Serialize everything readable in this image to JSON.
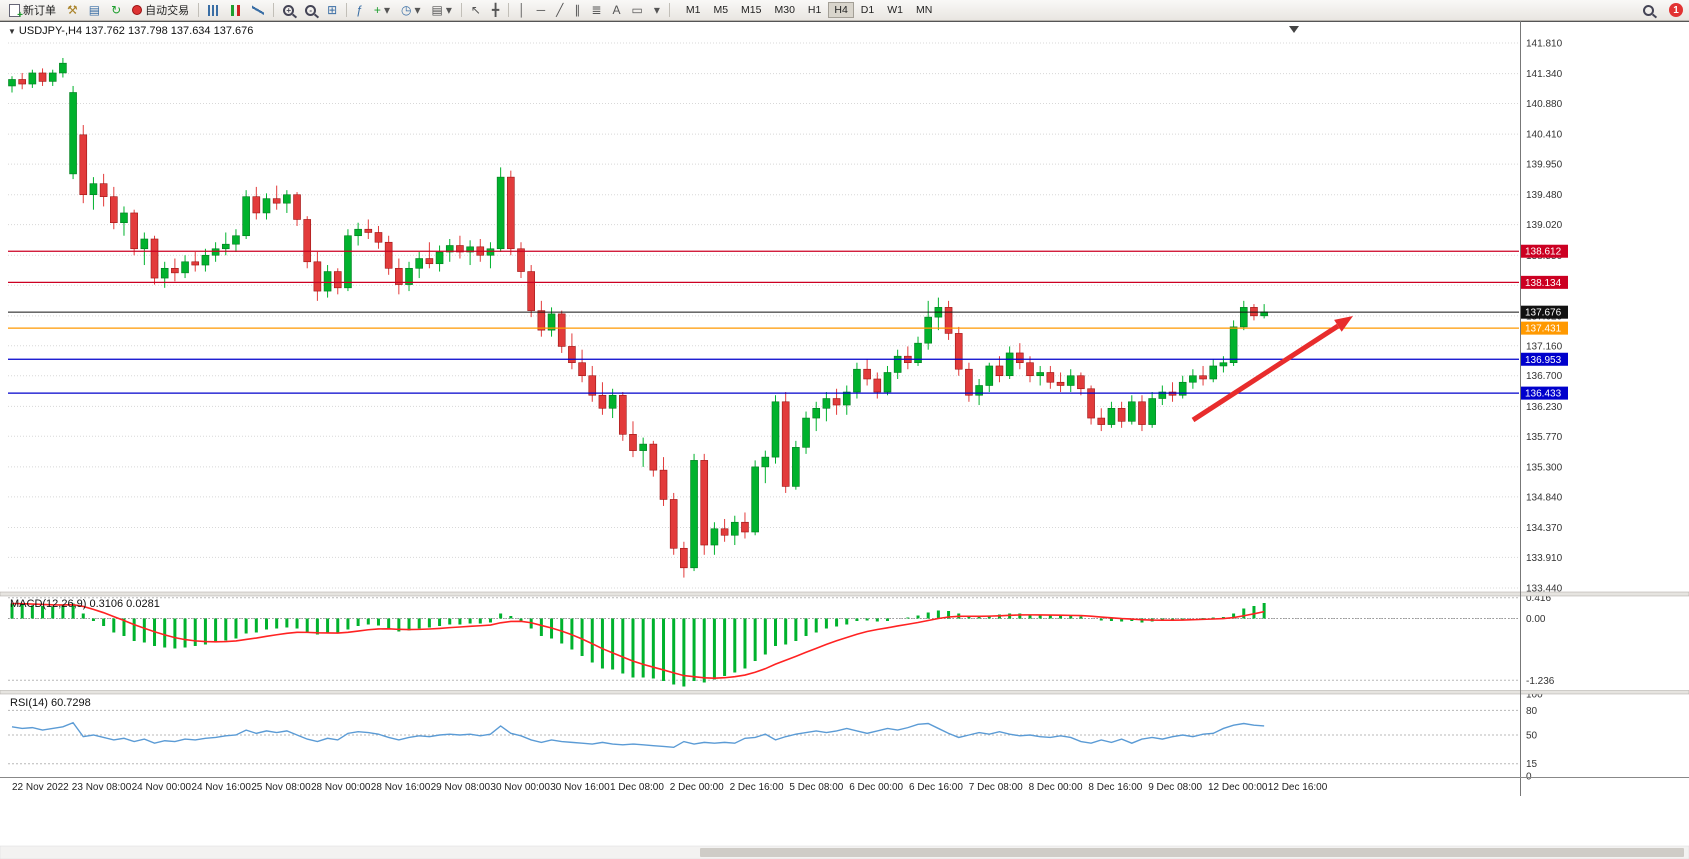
{
  "toolbar": {
    "new_order_label": "新订单",
    "auto_trading_label": "自动交易",
    "timeframes": [
      "M1",
      "M5",
      "M15",
      "M30",
      "H1",
      "H4",
      "D1",
      "W1",
      "MN"
    ],
    "active_timeframe": "H4",
    "notification_badge": "1",
    "icons": {
      "dropdown": "▾",
      "hammer": "⚒",
      "templates": "▤",
      "refresh": "↻",
      "tile": "⊞",
      "indicators": "ƒ",
      "add": "+",
      "clock": "◷",
      "cursor": "↖",
      "crosshair": "╋",
      "vline": "│",
      "hline": "─",
      "trendline": "╱",
      "channel": "∥",
      "fibonacci": "≣",
      "text_tool": "A",
      "label_tool": "▭"
    }
  },
  "chart": {
    "type": "candlestick",
    "symbol_info": "USDJPY-,H4 137.762 137.798 137.634 137.676",
    "collapse_icon": "▼",
    "price_axis": {
      "max": 141.81,
      "min": 133.44,
      "labels": [
        "141.810",
        "141.340",
        "140.880",
        "140.410",
        "139.950",
        "139.480",
        "139.020",
        "138.550",
        "138.090",
        "137.620",
        "137.160",
        "136.700",
        "136.230",
        "135.770",
        "135.300",
        "134.840",
        "134.370",
        "133.910",
        "133.440"
      ]
    },
    "time_labels": [
      "22 Nov 2022",
      "23 Nov 08:00",
      "24 Nov 00:00",
      "24 Nov 16:00",
      "25 Nov 08:00",
      "28 Nov 00:00",
      "28 Nov 16:00",
      "29 Nov 08:00",
      "30 Nov 00:00",
      "30 Nov 16:00",
      "1 Dec 08:00",
      "2 Dec 00:00",
      "2 Dec 16:00",
      "5 Dec 08:00",
      "6 Dec 00:00",
      "6 Dec 16:00",
      "7 Dec 08:00",
      "8 Dec 00:00",
      "8 Dec 16:00",
      "9 Dec 08:00",
      "12 Dec 00:00",
      "12 Dec 16:00"
    ],
    "hlines": [
      {
        "price": 138.612,
        "label": "138.612",
        "color": "#cc0022"
      },
      {
        "price": 138.134,
        "label": "138.134",
        "color": "#cc0022"
      },
      {
        "price": 137.431,
        "label": "137.431",
        "color": "#ff9900"
      },
      {
        "price": 136.953,
        "label": "136.953",
        "color": "#0000cc"
      },
      {
        "price": 136.433,
        "label": "136.433",
        "color": "#0000cc"
      }
    ],
    "bid_line": {
      "price": 137.676,
      "label": "137.676",
      "color": "#111111"
    },
    "colors": {
      "up": "#00b22d",
      "down": "#e23b3b",
      "background": "#ffffff",
      "grid": "#d8d8d8"
    },
    "candles": [
      [
        141.15,
        141.3,
        141.05,
        141.25
      ],
      [
        141.25,
        141.35,
        141.1,
        141.18
      ],
      [
        141.18,
        141.4,
        141.12,
        141.35
      ],
      [
        141.35,
        141.42,
        141.15,
        141.22
      ],
      [
        141.22,
        141.4,
        141.15,
        141.35
      ],
      [
        141.35,
        141.58,
        141.28,
        141.5
      ],
      [
        139.8,
        141.15,
        139.72,
        141.05
      ],
      [
        140.4,
        140.55,
        139.35,
        139.48
      ],
      [
        139.48,
        139.75,
        139.25,
        139.65
      ],
      [
        139.65,
        139.8,
        139.3,
        139.45
      ],
      [
        139.45,
        139.6,
        138.95,
        139.05
      ],
      [
        139.05,
        139.3,
        138.85,
        139.2
      ],
      [
        139.2,
        139.25,
        138.55,
        138.65
      ],
      [
        138.65,
        138.9,
        138.4,
        138.8
      ],
      [
        138.8,
        138.85,
        138.1,
        138.2
      ],
      [
        138.2,
        138.45,
        138.05,
        138.35
      ],
      [
        138.35,
        138.5,
        138.15,
        138.28
      ],
      [
        138.28,
        138.55,
        138.2,
        138.45
      ],
      [
        138.45,
        138.6,
        138.3,
        138.4
      ],
      [
        138.4,
        138.65,
        138.3,
        138.55
      ],
      [
        138.55,
        138.75,
        138.45,
        138.65
      ],
      [
        138.65,
        138.9,
        138.55,
        138.72
      ],
      [
        138.72,
        138.95,
        138.6,
        138.85
      ],
      [
        138.85,
        139.55,
        138.8,
        139.45
      ],
      [
        139.45,
        139.6,
        139.1,
        139.2
      ],
      [
        139.2,
        139.5,
        139.1,
        139.42
      ],
      [
        139.42,
        139.62,
        139.25,
        139.35
      ],
      [
        139.35,
        139.55,
        139.2,
        139.48
      ],
      [
        139.48,
        139.52,
        139.0,
        139.1
      ],
      [
        139.1,
        139.15,
        138.35,
        138.45
      ],
      [
        138.45,
        138.6,
        137.85,
        138.0
      ],
      [
        138.0,
        138.4,
        137.9,
        138.3
      ],
      [
        138.3,
        138.35,
        137.95,
        138.05
      ],
      [
        138.05,
        138.95,
        138.0,
        138.85
      ],
      [
        138.85,
        139.05,
        138.7,
        138.95
      ],
      [
        138.95,
        139.1,
        138.8,
        138.9
      ],
      [
        138.9,
        139.0,
        138.65,
        138.75
      ],
      [
        138.75,
        138.85,
        138.25,
        138.35
      ],
      [
        138.35,
        138.5,
        137.95,
        138.1
      ],
      [
        138.1,
        138.45,
        138.0,
        138.35
      ],
      [
        138.35,
        138.6,
        138.2,
        138.5
      ],
      [
        138.5,
        138.75,
        138.35,
        138.42
      ],
      [
        138.42,
        138.7,
        138.3,
        138.6
      ],
      [
        138.6,
        138.8,
        138.45,
        138.7
      ],
      [
        138.7,
        138.85,
        138.5,
        138.6
      ],
      [
        138.6,
        138.78,
        138.4,
        138.68
      ],
      [
        138.68,
        138.8,
        138.45,
        138.55
      ],
      [
        138.55,
        138.75,
        138.35,
        138.65
      ],
      [
        138.65,
        139.9,
        138.6,
        139.75
      ],
      [
        139.75,
        139.85,
        138.55,
        138.65
      ],
      [
        138.65,
        138.75,
        138.2,
        138.3
      ],
      [
        138.3,
        138.4,
        137.6,
        137.7
      ],
      [
        137.7,
        137.85,
        137.3,
        137.4
      ],
      [
        137.4,
        137.75,
        137.3,
        137.65
      ],
      [
        137.65,
        137.7,
        137.05,
        137.15
      ],
      [
        137.15,
        137.35,
        136.8,
        136.9
      ],
      [
        136.9,
        137.1,
        136.6,
        136.7
      ],
      [
        136.7,
        136.85,
        136.3,
        136.4
      ],
      [
        136.4,
        136.6,
        136.1,
        136.2
      ],
      [
        136.2,
        136.5,
        136.05,
        136.4
      ],
      [
        136.4,
        136.45,
        135.7,
        135.8
      ],
      [
        135.8,
        136.0,
        135.45,
        135.55
      ],
      [
        135.55,
        135.75,
        135.3,
        135.65
      ],
      [
        135.65,
        135.7,
        135.15,
        135.25
      ],
      [
        135.25,
        135.45,
        134.7,
        134.8
      ],
      [
        134.8,
        134.9,
        133.95,
        134.05
      ],
      [
        134.05,
        134.15,
        133.6,
        133.75
      ],
      [
        133.75,
        135.5,
        133.7,
        135.4
      ],
      [
        135.4,
        135.5,
        133.95,
        134.1
      ],
      [
        134.1,
        134.45,
        133.95,
        134.35
      ],
      [
        134.35,
        134.5,
        134.15,
        134.25
      ],
      [
        134.25,
        134.55,
        134.1,
        134.45
      ],
      [
        134.45,
        134.6,
        134.2,
        134.3
      ],
      [
        134.3,
        135.4,
        134.25,
        135.3
      ],
      [
        135.3,
        135.55,
        135.05,
        135.45
      ],
      [
        135.45,
        136.4,
        135.35,
        136.3
      ],
      [
        136.3,
        136.45,
        134.9,
        135.0
      ],
      [
        135.0,
        135.7,
        134.95,
        135.6
      ],
      [
        135.6,
        136.15,
        135.5,
        136.05
      ],
      [
        136.05,
        136.3,
        135.85,
        136.2
      ],
      [
        136.2,
        136.45,
        136.0,
        136.35
      ],
      [
        136.35,
        136.5,
        136.1,
        136.25
      ],
      [
        136.25,
        136.55,
        136.1,
        136.45
      ],
      [
        136.45,
        136.9,
        136.35,
        136.8
      ],
      [
        136.8,
        136.95,
        136.55,
        136.65
      ],
      [
        136.65,
        136.75,
        136.35,
        136.45
      ],
      [
        136.45,
        136.85,
        136.4,
        136.75
      ],
      [
        136.75,
        137.1,
        136.65,
        137.0
      ],
      [
        137.0,
        137.15,
        136.8,
        136.9
      ],
      [
        136.9,
        137.3,
        136.85,
        137.2
      ],
      [
        137.2,
        137.85,
        137.1,
        137.6
      ],
      [
        137.6,
        137.9,
        137.4,
        137.75
      ],
      [
        137.75,
        137.85,
        137.25,
        137.35
      ],
      [
        137.35,
        137.45,
        136.7,
        136.8
      ],
      [
        136.8,
        136.9,
        136.3,
        136.4
      ],
      [
        136.4,
        136.65,
        136.25,
        136.55
      ],
      [
        136.55,
        136.9,
        136.45,
        136.85
      ],
      [
        136.85,
        137.0,
        136.6,
        136.7
      ],
      [
        136.7,
        137.15,
        136.65,
        137.05
      ],
      [
        137.05,
        137.2,
        136.8,
        136.9
      ],
      [
        136.9,
        137.0,
        136.6,
        136.7
      ],
      [
        136.7,
        136.85,
        136.55,
        136.75
      ],
      [
        136.75,
        136.85,
        136.5,
        136.6
      ],
      [
        136.6,
        136.75,
        136.45,
        136.55
      ],
      [
        136.55,
        136.8,
        136.45,
        136.7
      ],
      [
        136.7,
        136.75,
        136.4,
        136.5
      ],
      [
        136.5,
        136.55,
        135.95,
        136.05
      ],
      [
        136.05,
        136.2,
        135.85,
        135.95
      ],
      [
        135.95,
        136.3,
        135.9,
        136.2
      ],
      [
        136.2,
        136.3,
        135.9,
        136.0
      ],
      [
        136.0,
        136.4,
        135.95,
        136.3
      ],
      [
        136.3,
        136.4,
        135.85,
        135.95
      ],
      [
        135.95,
        136.45,
        135.9,
        136.35
      ],
      [
        136.35,
        136.55,
        136.25,
        136.45
      ],
      [
        136.45,
        136.6,
        136.3,
        136.4
      ],
      [
        136.4,
        136.7,
        136.35,
        136.6
      ],
      [
        136.6,
        136.8,
        136.5,
        136.7
      ],
      [
        136.7,
        136.85,
        136.55,
        136.65
      ],
      [
        136.65,
        136.95,
        136.6,
        136.85
      ],
      [
        136.85,
        137.0,
        136.75,
        136.9
      ],
      [
        136.9,
        137.55,
        136.85,
        137.45
      ],
      [
        137.45,
        137.85,
        137.4,
        137.75
      ],
      [
        137.75,
        137.8,
        137.55,
        137.62
      ],
      [
        137.62,
        137.8,
        137.58,
        137.68
      ]
    ]
  },
  "macd": {
    "label": "MACD(12,26,9) 0.3106 0.0281",
    "range": {
      "max": 0.45,
      "min": -1.45
    },
    "levels": [
      0.416,
      0,
      -1.236
    ],
    "axis_labels": [
      "0.416",
      "0.00",
      "-1.236"
    ],
    "color_histogram": "#00b22d",
    "color_signal": "#ff2222",
    "histogram": [
      0.3,
      0.28,
      0.26,
      0.25,
      0.24,
      0.26,
      0.3,
      0.1,
      -0.05,
      -0.15,
      -0.28,
      -0.35,
      -0.45,
      -0.48,
      -0.55,
      -0.58,
      -0.6,
      -0.58,
      -0.55,
      -0.52,
      -0.48,
      -0.44,
      -0.4,
      -0.3,
      -0.28,
      -0.22,
      -0.2,
      -0.18,
      -0.2,
      -0.28,
      -0.32,
      -0.3,
      -0.3,
      -0.22,
      -0.15,
      -0.12,
      -0.14,
      -0.2,
      -0.26,
      -0.24,
      -0.2,
      -0.18,
      -0.15,
      -0.12,
      -0.12,
      -0.1,
      -0.1,
      -0.08,
      0.1,
      0.05,
      -0.05,
      -0.2,
      -0.35,
      -0.4,
      -0.5,
      -0.62,
      -0.75,
      -0.88,
      -1.0,
      -1.02,
      -1.1,
      -1.18,
      -1.18,
      -1.2,
      -1.25,
      -1.32,
      -1.36,
      -1.25,
      -1.28,
      -1.22,
      -1.15,
      -1.08,
      -1.0,
      -0.85,
      -0.72,
      -0.55,
      -0.52,
      -0.45,
      -0.35,
      -0.28,
      -0.2,
      -0.16,
      -0.12,
      -0.05,
      -0.04,
      -0.06,
      -0.05,
      0.0,
      0.02,
      0.06,
      0.12,
      0.16,
      0.15,
      0.1,
      0.05,
      0.04,
      0.06,
      0.08,
      0.1,
      0.1,
      0.08,
      0.07,
      0.06,
      0.05,
      0.05,
      0.04,
      0.0,
      -0.04,
      -0.05,
      -0.06,
      -0.05,
      -0.08,
      -0.06,
      -0.04,
      -0.03,
      -0.02,
      0.0,
      0.01,
      0.02,
      0.03,
      0.1,
      0.2,
      0.25,
      0.31
    ]
  },
  "rsi": {
    "label": "RSI(14) 60.7298",
    "range": {
      "max": 100,
      "min": 0
    },
    "levels": [
      80,
      50,
      15
    ],
    "axis_labels": [
      "100",
      "80",
      "50",
      "15",
      "0"
    ],
    "color": "#5b9bd5",
    "values": [
      60,
      58,
      59,
      56,
      58,
      60,
      65,
      48,
      50,
      47,
      44,
      46,
      42,
      45,
      40,
      43,
      42,
      45,
      44,
      46,
      47,
      49,
      50,
      56,
      52,
      55,
      53,
      55,
      50,
      45,
      42,
      46,
      44,
      52,
      54,
      53,
      51,
      47,
      44,
      47,
      49,
      48,
      50,
      51,
      50,
      51,
      49,
      51,
      61,
      52,
      49,
      44,
      41,
      44,
      42,
      41,
      40,
      39,
      41,
      39,
      38,
      39,
      38,
      37,
      36,
      35,
      42,
      39,
      41,
      40,
      41,
      40,
      46,
      47,
      51,
      44,
      48,
      51,
      53,
      55,
      53,
      55,
      58,
      55,
      52,
      55,
      58,
      56,
      59,
      63,
      64,
      58,
      52,
      47,
      50,
      53,
      51,
      54,
      51,
      49,
      50,
      48,
      47,
      49,
      47,
      42,
      40,
      44,
      41,
      45,
      40,
      45,
      47,
      45,
      48,
      50,
      48,
      51,
      52,
      58,
      62,
      64,
      62,
      61
    ]
  },
  "arrow": {
    "color": "#e82c2c"
  }
}
